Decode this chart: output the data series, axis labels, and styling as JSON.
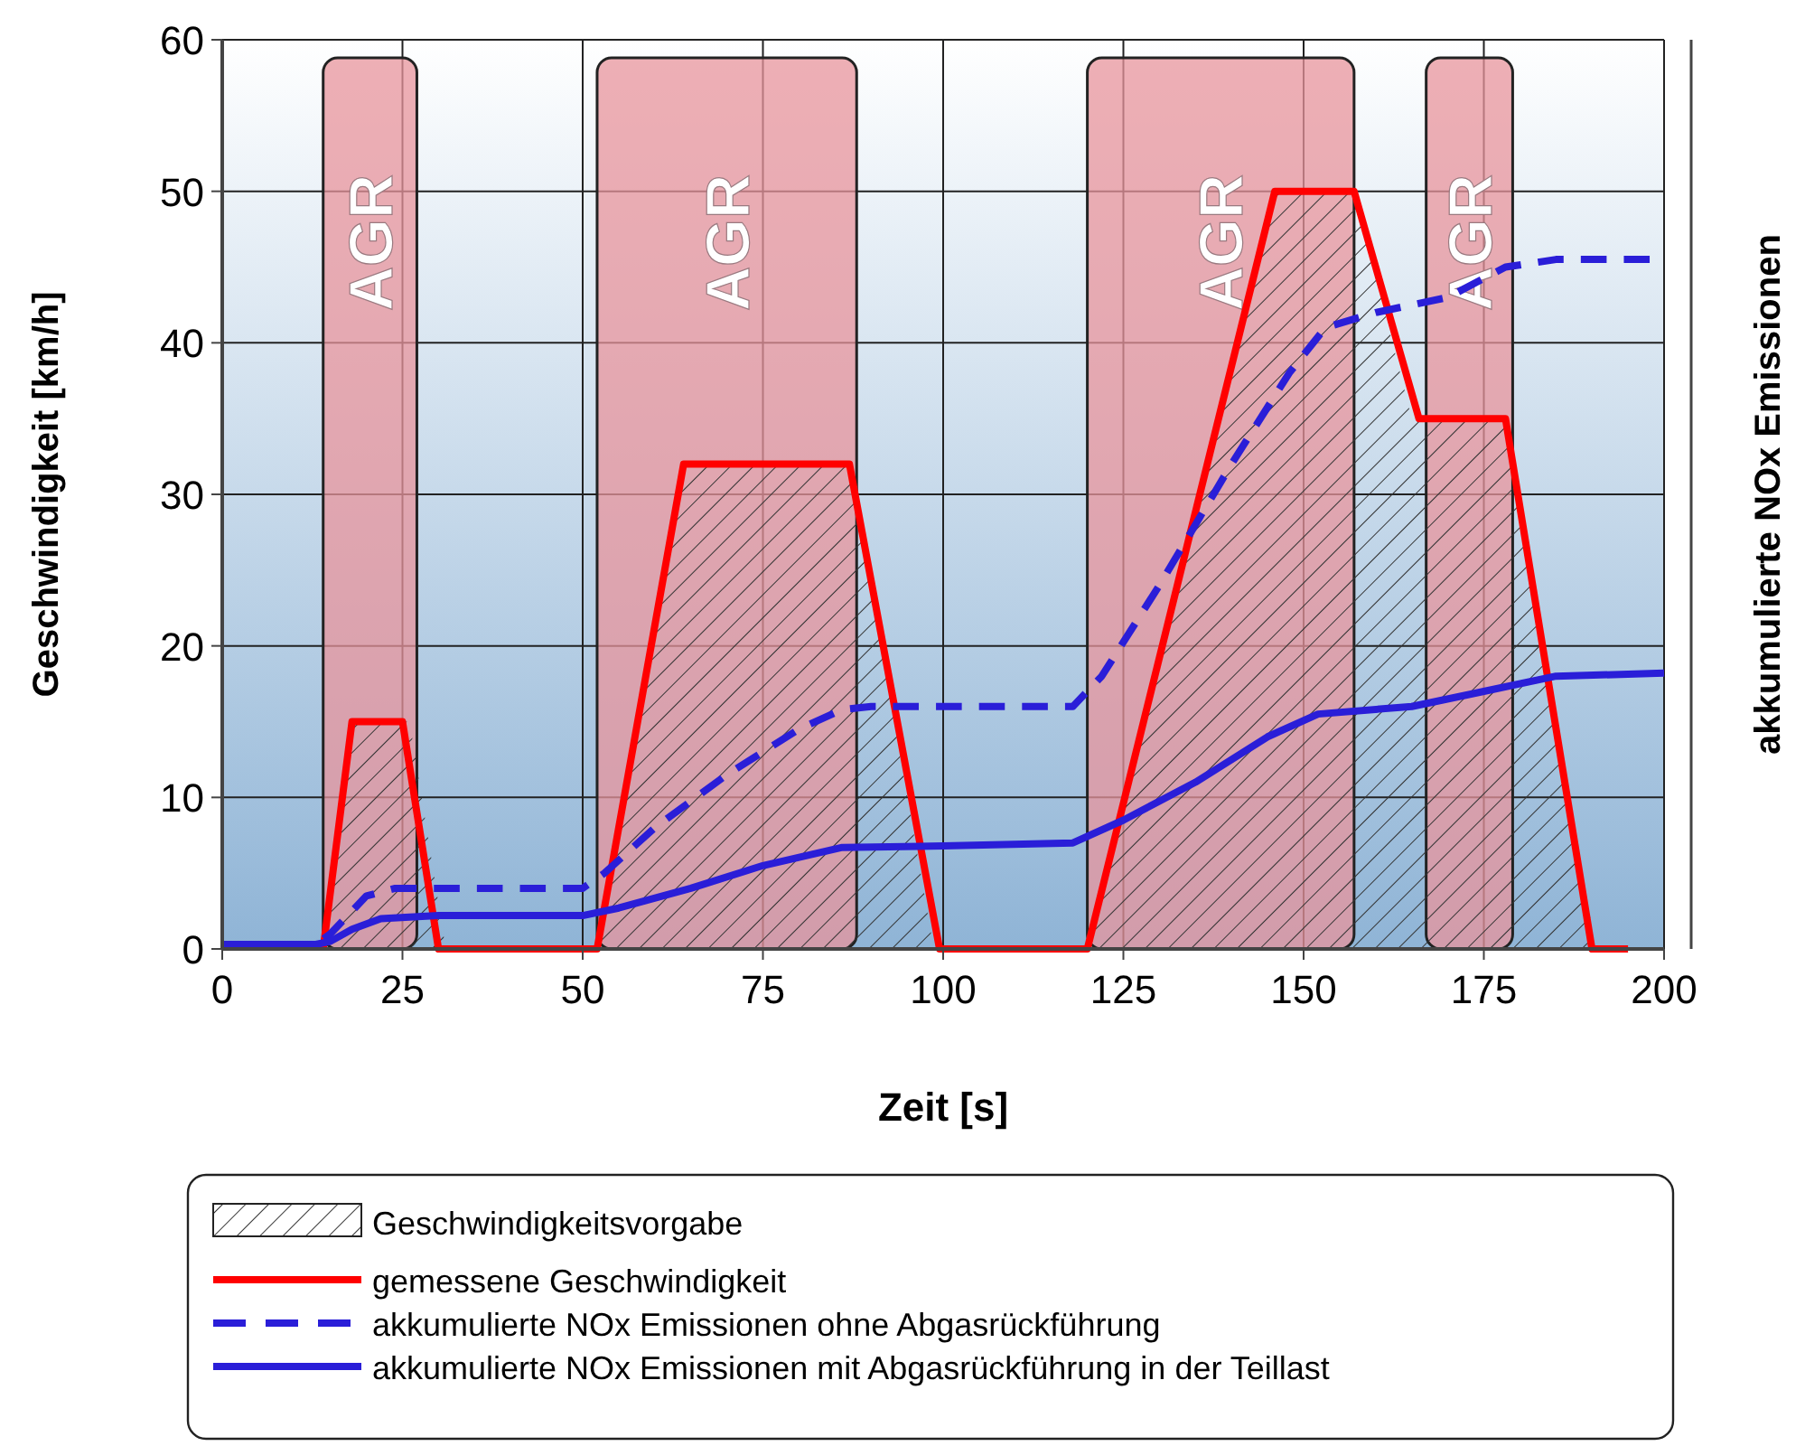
{
  "chart_data": {
    "type": "line",
    "xlabel": "Zeit [s]",
    "ylabel": "Geschwindigkeit [km/h]",
    "y2label": "akkumulierte NOx Emissionen",
    "xlim": [
      0,
      200
    ],
    "xticks": [
      0,
      25,
      50,
      75,
      100,
      125,
      150,
      175,
      200
    ],
    "ylim": [
      0,
      60
    ],
    "yticks": [
      0,
      10,
      20,
      30,
      40,
      50,
      60
    ],
    "grid": true,
    "legend": "bottom",
    "bands": [
      {
        "axis": "x",
        "from": 14,
        "to": 27,
        "label": "AGR",
        "color": "#e8949c"
      },
      {
        "axis": "x",
        "from": 52,
        "to": 88,
        "label": "AGR",
        "color": "#e8949c"
      },
      {
        "axis": "x",
        "from": 120,
        "to": 157,
        "label": "AGR",
        "color": "#e8949c"
      },
      {
        "axis": "x",
        "from": 167,
        "to": 179,
        "label": "AGR",
        "color": "#e8949c"
      }
    ],
    "series": [
      {
        "name": "Geschwindigkeitsvorgabe",
        "type": "area",
        "color": "#333333",
        "x": [
          14,
          18,
          26,
          31,
          52,
          64,
          87,
          98.7,
          120,
          146,
          157,
          165,
          178,
          190.5
        ],
        "values": [
          0,
          15,
          15,
          0,
          0,
          32,
          32,
          0,
          0,
          50,
          50,
          35,
          35,
          0
        ]
      },
      {
        "name": "gemessene Geschwindigkeit",
        "color": "#ff0000",
        "line_style": "solid",
        "x": [
          14,
          18,
          25,
          30,
          52,
          64,
          87,
          99.5,
          120,
          146,
          157,
          166,
          178,
          190,
          195
        ],
        "values": [
          0,
          15,
          15,
          0,
          0,
          32,
          32,
          0,
          0,
          50,
          50,
          35,
          35,
          0,
          0
        ]
      },
      {
        "name": "akkumulierte NOx Emissionen ohne Abgasrückführung",
        "color": "#2a1ed8",
        "line_style": "dashed",
        "x": [
          0,
          13,
          15,
          17,
          20,
          24,
          50,
          53,
          60,
          70,
          80,
          86,
          90,
          118,
          122,
          130,
          140,
          148,
          153,
          160,
          170,
          178,
          185,
          198
        ],
        "values": [
          0.3,
          0.3,
          1,
          2,
          3.5,
          4,
          4,
          5,
          8,
          11.5,
          14.5,
          15.8,
          16,
          16,
          18,
          24,
          32,
          38,
          41,
          42,
          43,
          45,
          45.5,
          45.5
        ]
      },
      {
        "name": "akkumulierte NOx Emissionen mit Abgasrückführung in der Teillast",
        "color": "#2a1ed8",
        "line_style": "solid",
        "x": [
          0,
          13,
          15,
          18,
          22,
          30,
          50,
          55,
          65,
          75,
          86,
          100,
          118,
          125,
          135,
          145,
          152,
          165,
          175,
          185,
          200
        ],
        "values": [
          0.3,
          0.3,
          0.5,
          1.3,
          2,
          2.2,
          2.2,
          2.7,
          4,
          5.5,
          6.7,
          6.8,
          7,
          8.5,
          11,
          14,
          15.5,
          16,
          17,
          18,
          18.2
        ]
      }
    ]
  }
}
